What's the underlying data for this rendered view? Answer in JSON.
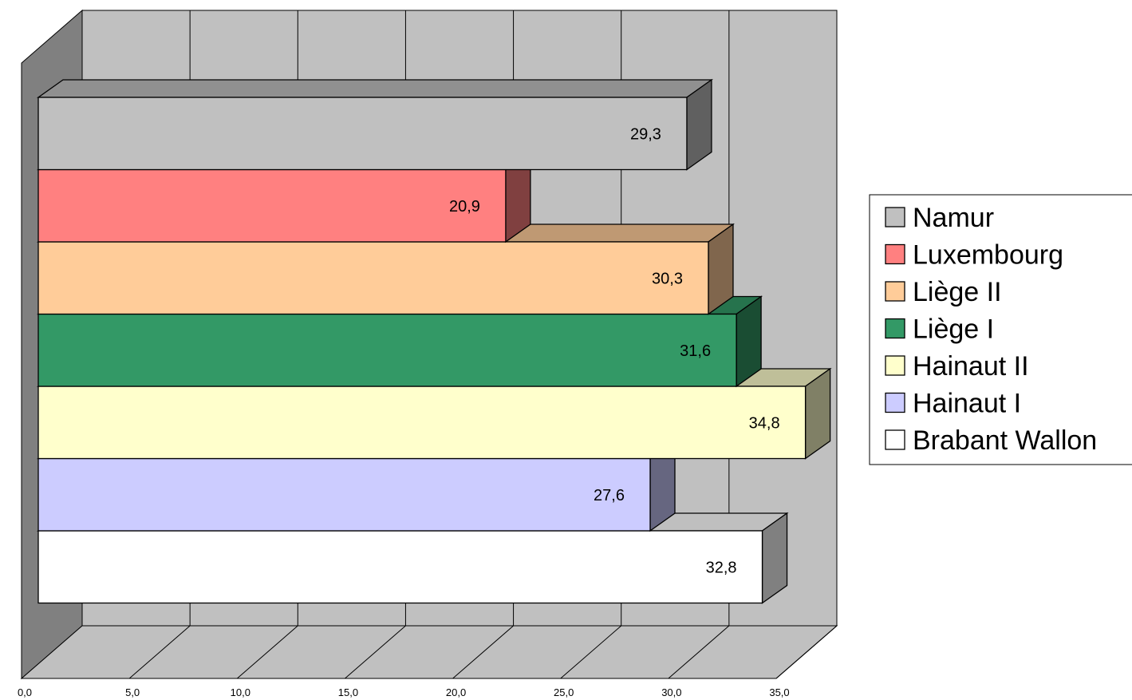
{
  "chart_data": {
    "type": "bar",
    "orientation": "horizontal",
    "three_d": true,
    "categories": [
      "Namur",
      "Luxembourg",
      "Liège II",
      "Liège I",
      "Hainaut II",
      "Hainaut I",
      "Brabant Wallon"
    ],
    "values": [
      29.3,
      20.9,
      30.3,
      31.6,
      34.8,
      27.6,
      32.8
    ],
    "value_labels": [
      "29,3",
      "20,9",
      "30,3",
      "31,6",
      "34,8",
      "27,6",
      "32,8"
    ],
    "colors": [
      "#c0c0c0",
      "#ff8080",
      "#ffcc99",
      "#339966",
      "#ffffcc",
      "#ccccff",
      "#ffffff"
    ],
    "xlim": [
      0,
      35
    ],
    "x_ticks": [
      "0,0",
      "5,0",
      "10,0",
      "15,0",
      "20,0",
      "25,0",
      "30,0",
      "35,0"
    ],
    "grid": true,
    "legend_position": "right",
    "title": "",
    "xlabel": "",
    "ylabel": ""
  }
}
